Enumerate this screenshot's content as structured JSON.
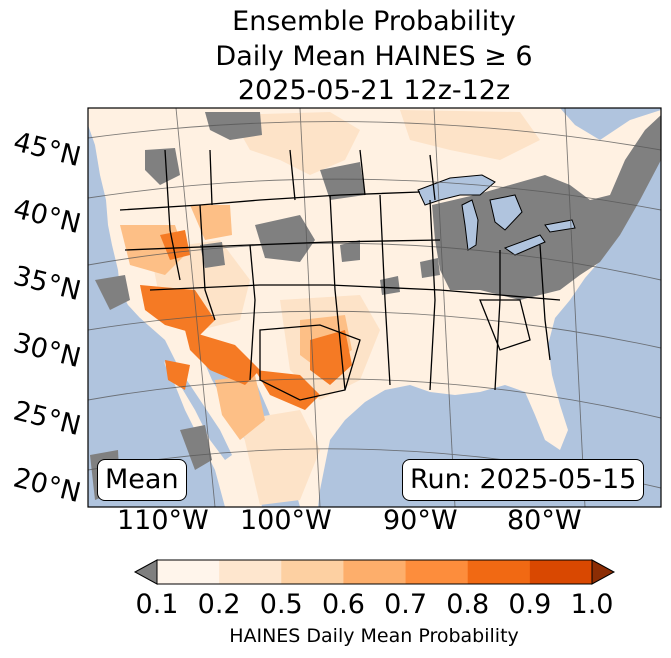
{
  "title": {
    "line1": "Ensemble Probability",
    "line2": "Daily Mean HAINES ≥ 6",
    "line3": "2025-05-21 12z-12z"
  },
  "map": {
    "badge_left": "Mean",
    "badge_right": "Run: 2025-05-15",
    "lat_labels": [
      "45°N",
      "40°N",
      "35°N",
      "30°N",
      "25°N",
      "20°N"
    ],
    "lon_labels": [
      "110°W",
      "100°W",
      "90°W",
      "80°W"
    ],
    "colors": {
      "ocean": "#b0c4de",
      "missing": "#7f7f7f"
    }
  },
  "colorbar": {
    "ticks": [
      "0.1",
      "0.2",
      "0.5",
      "0.6",
      "0.7",
      "0.8",
      "0.9",
      "1.0"
    ],
    "label": "HAINES Daily Mean Probability",
    "bin_colors": [
      "#fff5eb",
      "#fee6ce",
      "#fdd0a2",
      "#fdae6b",
      "#fd8d3c",
      "#f16913",
      "#d94801"
    ],
    "under_color": "#7f7f7f",
    "over_color": "#8c2d04"
  }
}
